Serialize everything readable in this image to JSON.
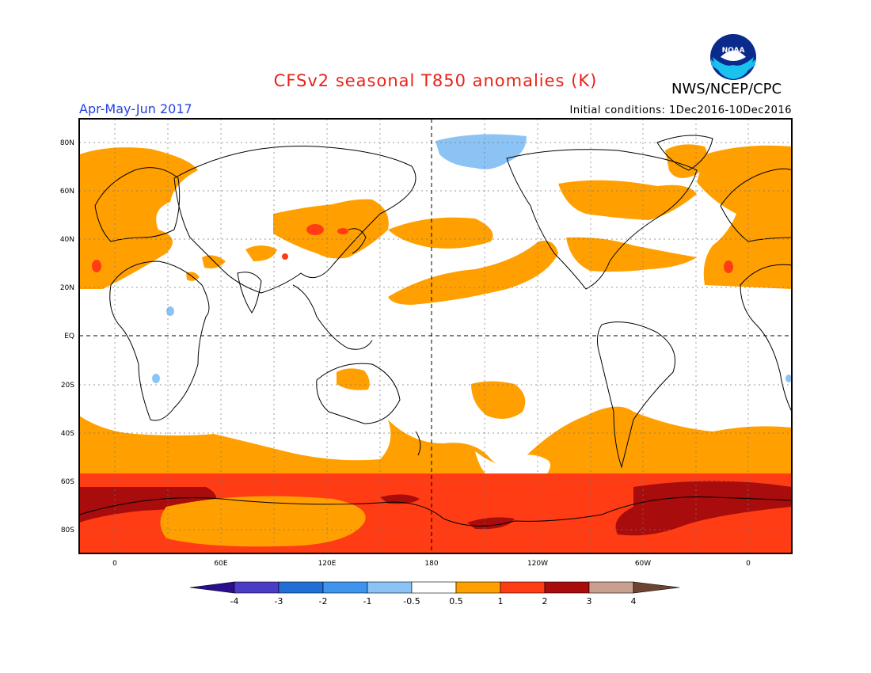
{
  "header": {
    "title": "CFSv2 seasonal T850 anomalies (K)",
    "agency": "NWS/NCEP/CPC",
    "logo_text": "NOAA",
    "period": "Apr-May-Jun 2017",
    "initial_conditions": "Initial conditions: 1Dec2016-10Dec2016"
  },
  "axes": {
    "lat_labels": [
      "80N",
      "60N",
      "40N",
      "20N",
      "EQ",
      "20S",
      "40S",
      "60S",
      "80S"
    ],
    "lon_labels": [
      "0",
      "60E",
      "120E",
      "180",
      "120W",
      "60W",
      "0"
    ]
  },
  "colorbar": {
    "labels": [
      "-4",
      "-3",
      "-2",
      "-1",
      "-0.5",
      "0.5",
      "1",
      "2",
      "3",
      "4"
    ],
    "colors": [
      "#2a0e8f",
      "#4b3cc6",
      "#1f6fd6",
      "#3f94ee",
      "#8cc3f5",
      "#ffffff",
      "#ff9f00",
      "#ff3d12",
      "#a50f0f",
      "#c9a08f",
      "#6e4333"
    ]
  },
  "palette": {
    "title_color": "#e8221a",
    "period_color": "#2443e0",
    "anom_05_1": "#ffa000",
    "anom_1_2": "#ff3c14",
    "anom_2_3": "#a80c0c",
    "anom_neg_1_05": "#8cc3f5"
  }
}
